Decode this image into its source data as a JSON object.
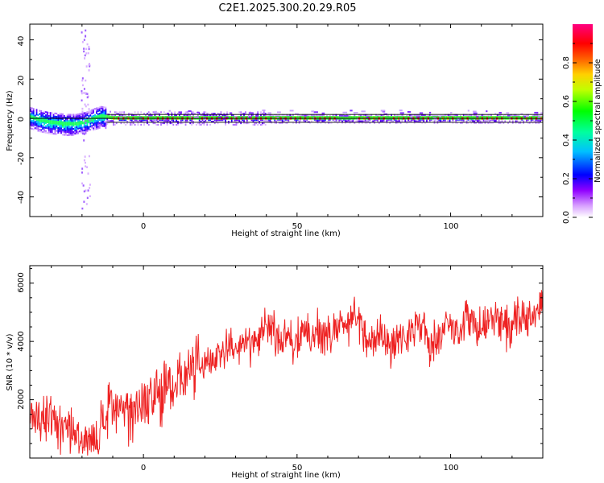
{
  "figure": {
    "title": "C2E1.2025.300.20.29.R05"
  },
  "chart_data": [
    {
      "type": "heatmap",
      "title": "C2E1.2025.300.20.29.R05",
      "xlabel": "Height of straight line (km)",
      "ylabel": "Frequency (Hz)",
      "xlim": [
        -37,
        130
      ],
      "ylim": [
        -50,
        48
      ],
      "xticks": [
        0,
        50,
        100
      ],
      "yticks": [
        -40,
        -20,
        0,
        20,
        40
      ],
      "xtick_labels": [
        "0",
        "50",
        "100"
      ],
      "ytick_labels": [
        "-40",
        "-20",
        "0",
        "20",
        "40"
      ],
      "center_line_hz": 0,
      "band_lines_hz": [
        -2,
        2
      ],
      "ridge_centers_hz": [
        {
          "x": -37,
          "f": 0.5
        },
        {
          "x": -34,
          "f": -1
        },
        {
          "x": -31,
          "f": -2
        },
        {
          "x": -28,
          "f": -2.5
        },
        {
          "x": -25,
          "f": -3
        },
        {
          "x": -22,
          "f": -3
        },
        {
          "x": -19,
          "f": -2
        },
        {
          "x": -16,
          "f": 0
        },
        {
          "x": -14,
          "f": 1
        },
        {
          "x": -10,
          "f": 0
        },
        {
          "x": 130,
          "f": 0
        }
      ],
      "scatter_feature": {
        "x": -19,
        "f_range": [
          -50,
          46
        ]
      },
      "colorbar": {
        "label": "Normalized spectral amplitude",
        "range": [
          0.0,
          1.0
        ],
        "ticks": [
          0.0,
          0.2,
          0.4,
          0.6,
          0.8
        ],
        "tick_labels": [
          "0.0",
          "0.2",
          "0.4",
          "0.6",
          "0.8"
        ],
        "colormap_stops": [
          "#ffffff",
          "#9000ff",
          "#0000ff",
          "#00ffff",
          "#00ff00",
          "#ffff00",
          "#ff8000",
          "#ff0000",
          "#ff0080"
        ]
      }
    },
    {
      "type": "line",
      "xlabel": "Height of straight line (km)",
      "ylabel": "SNR (10 * v/v)",
      "xlim": [
        -37,
        130
      ],
      "ylim": [
        0,
        6600
      ],
      "xticks": [
        0,
        50,
        100
      ],
      "yticks": [
        2000,
        4000,
        6000
      ],
      "xtick_labels": [
        "0",
        "50",
        "100"
      ],
      "ytick_labels": [
        "2000",
        "4000",
        "6000"
      ],
      "line_color": "#ee2222",
      "series": [
        {
          "name": "SNR",
          "x": [
            -37,
            -35,
            -33,
            -31,
            -29,
            -27,
            -25,
            -23,
            -21,
            -19,
            -17,
            -15,
            -13,
            -11,
            -9,
            -7,
            -5,
            -3,
            -1,
            1,
            3,
            5,
            7,
            9,
            11,
            13,
            15,
            17,
            19,
            21,
            23,
            25,
            27,
            29,
            31,
            33,
            35,
            37,
            39,
            41,
            43,
            45,
            47,
            49,
            51,
            53,
            55,
            57,
            59,
            61,
            63,
            65,
            67,
            69,
            71,
            73,
            75,
            77,
            79,
            81,
            83,
            85,
            87,
            89,
            91,
            93,
            95,
            97,
            99,
            101,
            103,
            105,
            107,
            109,
            111,
            113,
            115,
            117,
            119,
            121,
            123,
            125,
            127,
            129,
            130
          ],
          "y": [
            1200,
            1400,
            1300,
            1500,
            1200,
            1000,
            1100,
            900,
            800,
            600,
            700,
            500,
            1300,
            1500,
            1600,
            1700,
            1700,
            1800,
            1900,
            2000,
            2100,
            2200,
            2400,
            2300,
            2700,
            2900,
            3000,
            3200,
            3100,
            3500,
            3300,
            3600,
            3700,
            3900,
            3500,
            4000,
            3900,
            4000,
            4300,
            4700,
            4100,
            4000,
            4300,
            3900,
            4200,
            4300,
            4100,
            4400,
            4300,
            4100,
            4500,
            4600,
            4700,
            4900,
            4300,
            4100,
            3900,
            4600,
            3800,
            3900,
            4200,
            4100,
            4400,
            4700,
            4500,
            3800,
            4200,
            4100,
            4600,
            4400,
            4300,
            4900,
            4700,
            4500,
            4400,
            4800,
            4700,
            4600,
            4400,
            4700,
            4800,
            4900,
            4700,
            5000,
            5400
          ]
        }
      ]
    }
  ]
}
